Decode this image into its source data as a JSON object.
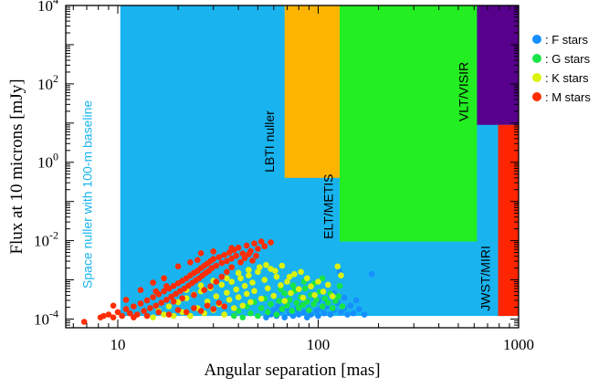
{
  "chart_data": {
    "type": "scatter",
    "x_scale": "log",
    "y_scale": "log",
    "xlim": [
      5.5,
      1000
    ],
    "ylim": [
      6e-05,
      10000
    ],
    "xlabel": "Angular separation [mas]",
    "ylabel": "Flux at 10 microns [mJy]",
    "x_ticks": [
      {
        "value": 10,
        "label": "10"
      },
      {
        "value": 100,
        "label": "100"
      },
      {
        "value": 1000,
        "label": "1000"
      }
    ],
    "y_ticks": [
      {
        "value": 0.0001,
        "base": "10",
        "exp": "-4"
      },
      {
        "value": 0.01,
        "base": "10",
        "exp": "-2"
      },
      {
        "value": 1,
        "base": "10",
        "exp": "0"
      },
      {
        "value": 100,
        "base": "10",
        "exp": "2"
      },
      {
        "value": 10000,
        "base": "10",
        "exp": "4"
      }
    ],
    "regions": [
      {
        "name": "Space nuller with 100-m baseline",
        "x": [
          10.3,
          1000
        ],
        "y": [
          0.00012,
          10000
        ],
        "color": "#19b4f0",
        "label_color": "#19b4f0",
        "label_at": [
          7.4,
          0.0006
        ],
        "label_rotate": -90
      },
      {
        "name": "LBTI nuller",
        "x": [
          68,
          128
        ],
        "y": [
          0.4,
          10000
        ],
        "color": "#fdb400",
        "label_color": "#000000",
        "label_at": [
          60,
          0.55
        ],
        "label_rotate": -90
      },
      {
        "name": "ELT/METIS",
        "x": [
          128,
          620
        ],
        "y": [
          0.0095,
          10000
        ],
        "color": "#22ee22",
        "label_color": "#000000",
        "label_at": [
          118,
          0.011
        ],
        "label_rotate": -90
      },
      {
        "name": "VLT/VISIR",
        "x": [
          620,
          1000
        ],
        "y": [
          9,
          10000
        ],
        "color": "#57008c",
        "label_color": "#000000",
        "label_at": [
          560,
          11
        ],
        "label_rotate": -90
      },
      {
        "name": "JWST/MIRI",
        "x": [
          790,
          1000
        ],
        "y": [
          0.00012,
          9
        ],
        "color": "#fe2500",
        "label_color": "#000000",
        "label_at": [
          720,
          0.00016
        ],
        "label_rotate": -90
      }
    ],
    "legend": {
      "placement": "right",
      "entries": [
        {
          "name": ": F stars",
          "color": "#168fff"
        },
        {
          "name": ": G stars",
          "color": "#17e547"
        },
        {
          "name": ": K stars",
          "color": "#dbf20d"
        },
        {
          "name": ": M stars",
          "color": "#ff2d03"
        }
      ]
    },
    "series": [
      {
        "name": "F stars",
        "color": "#168fff",
        "points": [
          [
            55,
            0.00011
          ],
          [
            58,
            0.00013
          ],
          [
            62,
            0.00012
          ],
          [
            65,
            0.00016
          ],
          [
            68,
            0.00011
          ],
          [
            70,
            0.00019
          ],
          [
            72,
            0.00014
          ],
          [
            75,
            0.00012
          ],
          [
            78,
            0.00017
          ],
          [
            80,
            0.00013
          ],
          [
            82,
            0.00022
          ],
          [
            85,
            0.00015
          ],
          [
            88,
            0.00011
          ],
          [
            90,
            0.00018
          ],
          [
            92,
            0.00013
          ],
          [
            95,
            0.00024
          ],
          [
            98,
            0.00016
          ],
          [
            100,
            0.00012
          ],
          [
            103,
            0.00019
          ],
          [
            107,
            0.00014
          ],
          [
            110,
            0.00021
          ],
          [
            115,
            0.00013
          ],
          [
            120,
            0.00017
          ],
          [
            125,
            0.00026
          ],
          [
            130,
            0.00015
          ],
          [
            135,
            0.00019
          ],
          [
            140,
            0.00013
          ],
          [
            145,
            0.00022
          ],
          [
            150,
            0.00014
          ],
          [
            160,
            0.00018
          ],
          [
            170,
            0.00013
          ],
          [
            155,
            0.0003
          ],
          [
            135,
            0.00035
          ],
          [
            128,
            0.0016
          ],
          [
            185,
            0.0014
          ],
          [
            120,
            0.00045
          ],
          [
            110,
            0.00028
          ],
          [
            100,
            0.0003
          ],
          [
            95,
            0.00038
          ],
          [
            88,
            0.00029
          ],
          [
            78,
            0.00025
          ],
          [
            70,
            0.00028
          ],
          [
            63,
            0.00021
          ],
          [
            60,
            0.00017
          ]
        ]
      },
      {
        "name": "G stars",
        "color": "#17e547",
        "points": [
          [
            38,
            0.00012
          ],
          [
            40,
            0.00016
          ],
          [
            42,
            0.00011
          ],
          [
            44,
            0.00021
          ],
          [
            46,
            0.00014
          ],
          [
            48,
            0.00027
          ],
          [
            50,
            0.00012
          ],
          [
            52,
            0.00019
          ],
          [
            54,
            0.00033
          ],
          [
            56,
            0.00015
          ],
          [
            58,
            0.00024
          ],
          [
            60,
            0.00038
          ],
          [
            62,
            0.00013
          ],
          [
            64,
            0.00029
          ],
          [
            66,
            0.00018
          ],
          [
            68,
            0.00045
          ],
          [
            70,
            0.00022
          ],
          [
            72,
            0.00031
          ],
          [
            74,
            0.00016
          ],
          [
            76,
            0.00052
          ],
          [
            78,
            0.00026
          ],
          [
            80,
            0.00019
          ],
          [
            82,
            0.00036
          ],
          [
            84,
            0.00023
          ],
          [
            86,
            0.0006
          ],
          [
            88,
            0.00028
          ],
          [
            90,
            0.00017
          ],
          [
            92,
            0.00041
          ],
          [
            95,
            0.00024
          ],
          [
            98,
            0.00031
          ],
          [
            102,
            0.0005
          ],
          [
            105,
            0.00021
          ],
          [
            108,
            0.00033
          ],
          [
            112,
            0.00026
          ],
          [
            115,
            0.00044
          ],
          [
            118,
            0.00019
          ],
          [
            122,
            0.00029
          ],
          [
            126,
            0.00038
          ],
          [
            95,
            0.0008
          ],
          [
            85,
            0.0009
          ],
          [
            105,
            0.0011
          ],
          [
            128,
            0.0007
          ],
          [
            132,
            0.00021
          ],
          [
            75,
            0.00072
          ],
          [
            65,
            0.00058
          ]
        ]
      },
      {
        "name": "K stars",
        "color": "#dbf20d",
        "points": [
          [
            15,
            0.00011
          ],
          [
            16,
            0.00016
          ],
          [
            17,
            0.00013
          ],
          [
            18,
            0.00021
          ],
          [
            19,
            0.00012
          ],
          [
            20,
            0.00027
          ],
          [
            21,
            0.00015
          ],
          [
            22,
            0.00034
          ],
          [
            23,
            0.00012
          ],
          [
            24,
            0.00042
          ],
          [
            25,
            0.00019
          ],
          [
            26,
            0.00051
          ],
          [
            27,
            0.00014
          ],
          [
            28,
            0.00028
          ],
          [
            29,
            0.00062
          ],
          [
            30,
            0.00017
          ],
          [
            31,
            0.00038
          ],
          [
            32,
            0.00024
          ],
          [
            33,
            0.00075
          ],
          [
            34,
            0.00013
          ],
          [
            35,
            0.00047
          ],
          [
            36,
            0.00031
          ],
          [
            37,
            0.00089
          ],
          [
            38,
            0.00019
          ],
          [
            39,
            0.00057
          ],
          [
            40,
            0.00036
          ],
          [
            41,
            0.0011
          ],
          [
            42,
            0.00022
          ],
          [
            43,
            0.0007
          ],
          [
            44,
            0.00044
          ],
          [
            45,
            0.0013
          ],
          [
            46,
            0.00027
          ],
          [
            47,
            0.00085
          ],
          [
            48,
            0.00052
          ],
          [
            50,
            0.0016
          ],
          [
            52,
            0.00033
          ],
          [
            54,
            0.001
          ],
          [
            56,
            0.00061
          ],
          [
            58,
            0.0019
          ],
          [
            60,
            0.00039
          ],
          [
            62,
            0.0012
          ],
          [
            65,
            0.00073
          ],
          [
            68,
            0.00029
          ],
          [
            70,
            0.0009
          ],
          [
            73,
            0.00046
          ],
          [
            76,
            0.0014
          ],
          [
            80,
            0.00058
          ],
          [
            84,
            0.00035
          ],
          [
            88,
            0.0011
          ],
          [
            92,
            0.00068
          ],
          [
            96,
            0.00041
          ],
          [
            100,
            0.0009
          ],
          [
            106,
            0.0005
          ],
          [
            112,
            0.00075
          ],
          [
            118,
            0.00038
          ],
          [
            125,
            0.0022
          ],
          [
            130,
            0.0013
          ],
          [
            66,
            0.0023
          ],
          [
            55,
            0.0024
          ],
          [
            45,
            0.0018
          ],
          [
            35,
            0.0011
          ],
          [
            26,
            0.00072
          ],
          [
            22,
            0.00055
          ],
          [
            30,
            0.00095
          ],
          [
            40,
            0.0015
          ],
          [
            51,
            0.0021
          ],
          [
            61,
            0.0017
          ],
          [
            72,
            0.0012
          ],
          [
            82,
            0.0016
          ]
        ]
      },
      {
        "name": "M stars",
        "color": "#ff2d03",
        "points": [
          [
            6.8,
            8.5e-05
          ],
          [
            8.2,
            0.00011
          ],
          [
            8.5,
            0.00012
          ],
          [
            9,
            0.00013
          ],
          [
            9.5,
            0.00011
          ],
          [
            10,
            0.00015
          ],
          [
            10.5,
            0.00012
          ],
          [
            11,
            0.00018
          ],
          [
            11.5,
            0.00014
          ],
          [
            12,
            0.00021
          ],
          [
            12.5,
            0.00013
          ],
          [
            13,
            0.00025
          ],
          [
            13.5,
            0.00016
          ],
          [
            14,
            0.0003
          ],
          [
            14.5,
            0.00019
          ],
          [
            15,
            0.00036
          ],
          [
            15.5,
            0.00022
          ],
          [
            16,
            0.00043
          ],
          [
            16.5,
            0.00026
          ],
          [
            17,
            0.00051
          ],
          [
            17.5,
            0.00031
          ],
          [
            18,
            0.0006
          ],
          [
            18.5,
            0.00037
          ],
          [
            19,
            0.0007
          ],
          [
            19.5,
            0.00044
          ],
          [
            20,
            0.00082
          ],
          [
            20.5,
            0.00052
          ],
          [
            21,
            0.00095
          ],
          [
            21.5,
            0.0006
          ],
          [
            22,
            0.0011
          ],
          [
            22.5,
            0.00071
          ],
          [
            23,
            0.0013
          ],
          [
            23.5,
            0.00083
          ],
          [
            24,
            0.0015
          ],
          [
            24.5,
            0.00097
          ],
          [
            25,
            0.0017
          ],
          [
            25.5,
            0.0011
          ],
          [
            26,
            0.002
          ],
          [
            26.5,
            0.0013
          ],
          [
            27,
            0.0023
          ],
          [
            27.5,
            0.0015
          ],
          [
            28,
            0.0026
          ],
          [
            28.5,
            0.0017
          ],
          [
            29,
            0.003
          ],
          [
            29.5,
            0.002
          ],
          [
            30,
            0.0034
          ],
          [
            31,
            0.0023
          ],
          [
            32,
            0.0038
          ],
          [
            33,
            0.0027
          ],
          [
            34,
            0.0043
          ],
          [
            35,
            0.003
          ],
          [
            36,
            0.005
          ],
          [
            37,
            0.0035
          ],
          [
            38,
            0.0058
          ],
          [
            39,
            0.0041
          ],
          [
            40,
            0.0066
          ],
          [
            42,
            0.0047
          ],
          [
            44,
            0.0075
          ],
          [
            46,
            0.0054
          ],
          [
            48,
            0.0085
          ],
          [
            50,
            0.0062
          ],
          [
            52,
            0.0095
          ],
          [
            54,
            0.0072
          ],
          [
            30,
            0.0053
          ],
          [
            26,
            0.0048
          ],
          [
            23,
            0.0028
          ],
          [
            20,
            0.0022
          ],
          [
            17,
            0.0011
          ],
          [
            15,
            0.00085
          ],
          [
            13,
            0.00055
          ],
          [
            11,
            0.00031
          ],
          [
            9.5,
            0.00022
          ],
          [
            12,
            0.00011
          ],
          [
            14,
            0.00012
          ],
          [
            16,
            0.00015
          ],
          [
            18,
            0.00013
          ],
          [
            20,
            0.00017
          ],
          [
            22,
            0.00015
          ],
          [
            24,
            0.00019
          ],
          [
            26,
            0.00016
          ],
          [
            28,
            0.00022
          ],
          [
            30,
            0.00018
          ],
          [
            32,
            0.00026
          ],
          [
            34,
            0.00021
          ],
          [
            19,
            0.00028
          ],
          [
            21,
            0.00034
          ],
          [
            24,
            0.00041
          ],
          [
            27,
            0.00055
          ],
          [
            29,
            0.00068
          ],
          [
            31,
            0.0009
          ],
          [
            33,
            0.0012
          ],
          [
            35,
            0.0016
          ],
          [
            37,
            0.0021
          ],
          [
            41,
            0.0028
          ],
          [
            43,
            0.0036
          ],
          [
            45,
            0.0045
          ],
          [
            47,
            0.0031
          ],
          [
            49,
            0.0041
          ],
          [
            15.5,
            0.00051
          ],
          [
            17.5,
            0.00069
          ],
          [
            25,
            0.0032
          ],
          [
            37,
            0.0065
          ],
          [
            58,
            0.009
          ]
        ]
      }
    ]
  }
}
